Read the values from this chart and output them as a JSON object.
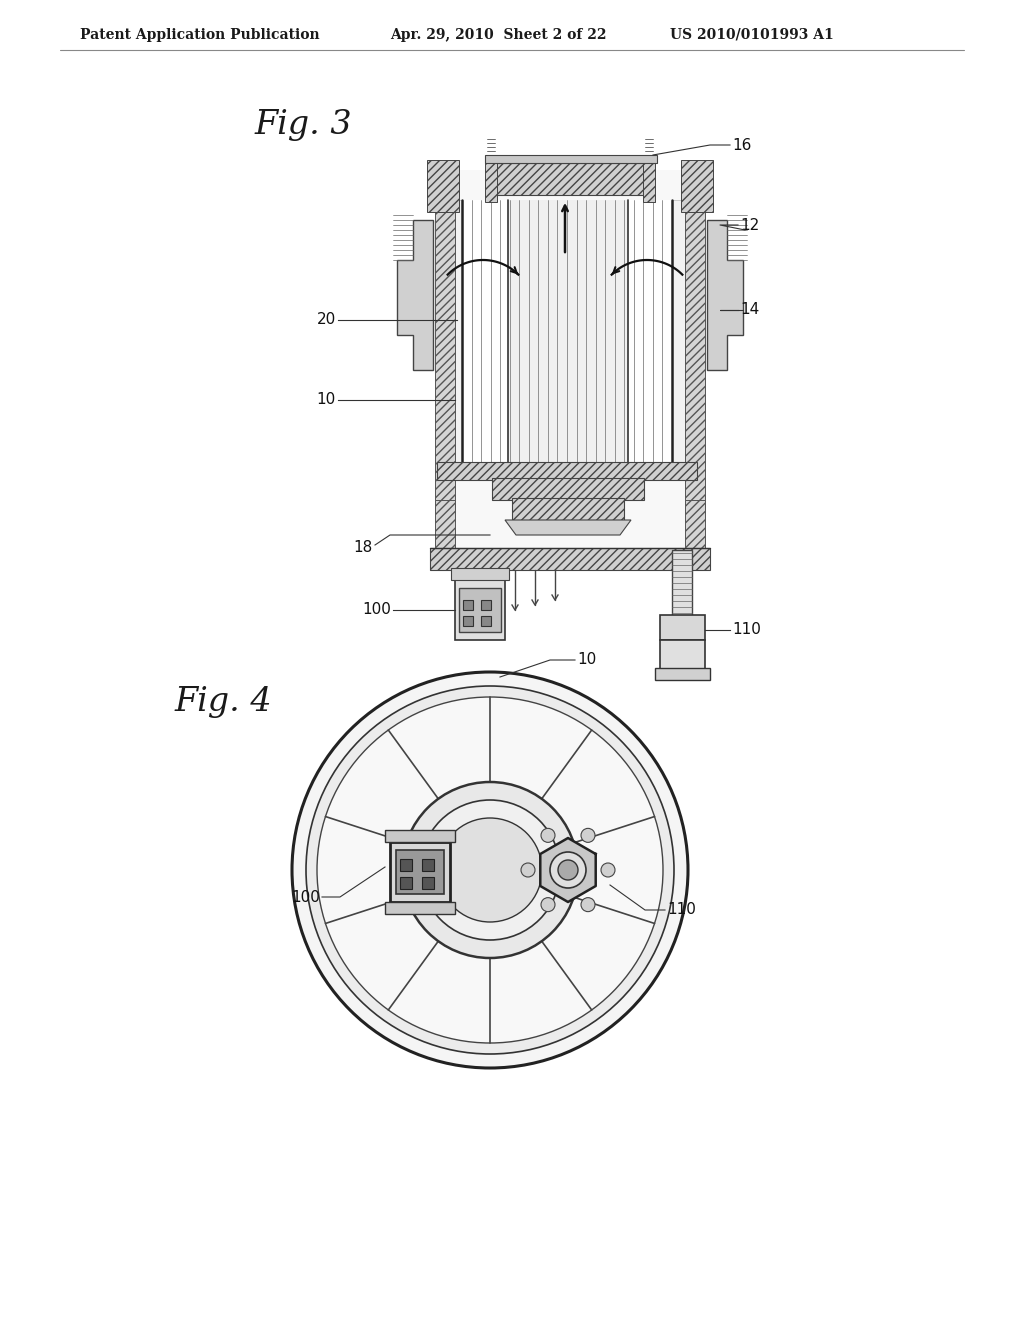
{
  "bg_color": "#ffffff",
  "line_color": "#1a1a1a",
  "header_text": "Patent Application Publication",
  "header_date": "Apr. 29, 2010  Sheet 2 of 22",
  "header_patent": "US 2010/0101993 A1",
  "fig3_label": "Fig. 3",
  "fig4_label": "Fig. 4"
}
